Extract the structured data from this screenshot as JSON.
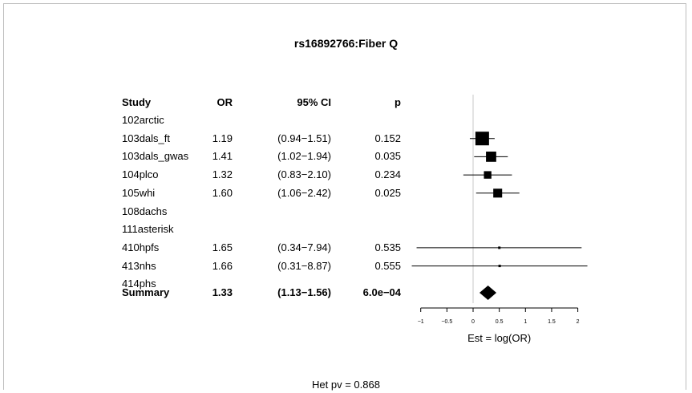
{
  "chart_data": {
    "type": "forest",
    "title": "rs16892766:Fiber Q",
    "columns": {
      "study": "Study",
      "or": "OR",
      "ci": "95% CI",
      "p": "p"
    },
    "rows": [
      {
        "study": "102arctic"
      },
      {
        "study": "103dals_ft",
        "or": "1.19",
        "ci": "(0.94−1.51)",
        "p": "0.152",
        "est": 0.174,
        "lo": -0.062,
        "hi": 0.412,
        "weight": 1.0
      },
      {
        "study": "103dals_gwas",
        "or": "1.41",
        "ci": "(1.02−1.94)",
        "p": "0.035",
        "est": 0.344,
        "lo": 0.02,
        "hi": 0.663,
        "weight": 0.75
      },
      {
        "study": "104plco",
        "or": "1.32",
        "ci": "(0.83−2.10)",
        "p": "0.234",
        "est": 0.278,
        "lo": -0.186,
        "hi": 0.742,
        "weight": 0.55
      },
      {
        "study": "105whi",
        "or": "1.60",
        "ci": "(1.06−2.42)",
        "p": "0.025",
        "est": 0.47,
        "lo": 0.058,
        "hi": 0.884,
        "weight": 0.65
      },
      {
        "study": "108dachs"
      },
      {
        "study": "111asterisk"
      },
      {
        "study": "410hpfs",
        "or": "1.65",
        "ci": "(0.34−7.94)",
        "p": "0.535",
        "est": 0.501,
        "lo": -1.079,
        "hi": 2.072,
        "weight": 0.15
      },
      {
        "study": "413nhs",
        "or": "1.66",
        "ci": "(0.31−8.87)",
        "p": "0.555",
        "est": 0.507,
        "lo": -1.171,
        "hi": 2.183,
        "weight": 0.1
      },
      {
        "study": "414phs"
      }
    ],
    "summary": {
      "study": "Summary",
      "or": "1.33",
      "ci": "(1.13−1.56)",
      "p": "6.0e−04",
      "est": 0.285,
      "lo": 0.122,
      "hi": 0.445
    },
    "xlabel": "Est = log(OR)",
    "xticks": [
      "−1",
      "−0.5",
      "0",
      "0.5",
      "1",
      "1.5",
      "2"
    ],
    "xtick_values": [
      -1,
      -0.5,
      0,
      0.5,
      1,
      1.5,
      2
    ],
    "reference_line": 0,
    "footer": "Het pv =  0.868"
  }
}
